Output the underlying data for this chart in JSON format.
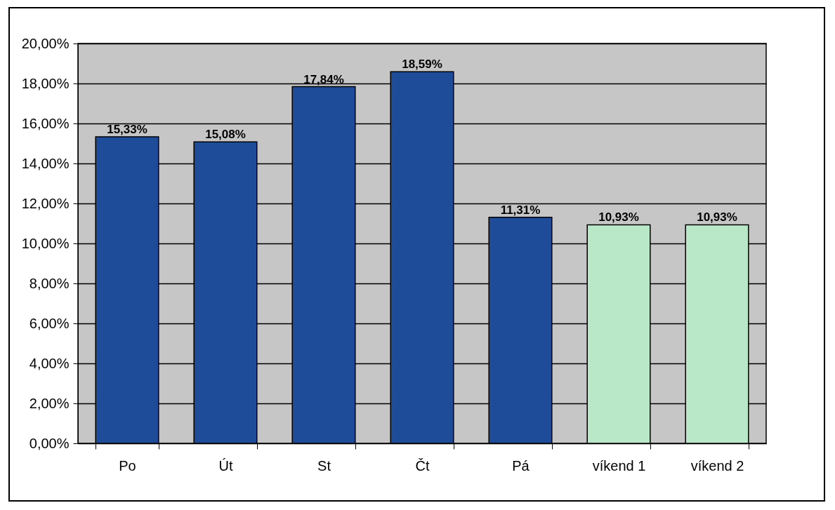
{
  "chart_data": {
    "type": "bar",
    "categories": [
      "Po",
      "Út",
      "St",
      "Čt",
      "Pá",
      "víkend 1",
      "víkend 2"
    ],
    "values": [
      15.33,
      15.08,
      17.84,
      18.59,
      11.31,
      10.93,
      10.93
    ],
    "colors": [
      "#1f4c99",
      "#1f4c99",
      "#1f4c99",
      "#1f4c99",
      "#1f4c99",
      "#b9e8c9",
      "#b9e8c9"
    ],
    "value_labels": [
      "15,33%",
      "15,08%",
      "17,84%",
      "18,59%",
      "11,31%",
      "10,93%",
      "10,93%"
    ],
    "ylim": [
      0,
      20
    ],
    "yticks": [
      {
        "value": 0,
        "label": "0,00%"
      },
      {
        "value": 2,
        "label": "2,00%"
      },
      {
        "value": 4,
        "label": "4,00%"
      },
      {
        "value": 6,
        "label": "6,00%"
      },
      {
        "value": 8,
        "label": "8,00%"
      },
      {
        "value": 10,
        "label": "10,00%"
      },
      {
        "value": 12,
        "label": "12,00%"
      },
      {
        "value": 14,
        "label": "14,00%"
      },
      {
        "value": 16,
        "label": "16,00%"
      },
      {
        "value": 18,
        "label": "18,00%"
      },
      {
        "value": 20,
        "label": "20,00%"
      }
    ],
    "grid": "y",
    "legend": false
  }
}
